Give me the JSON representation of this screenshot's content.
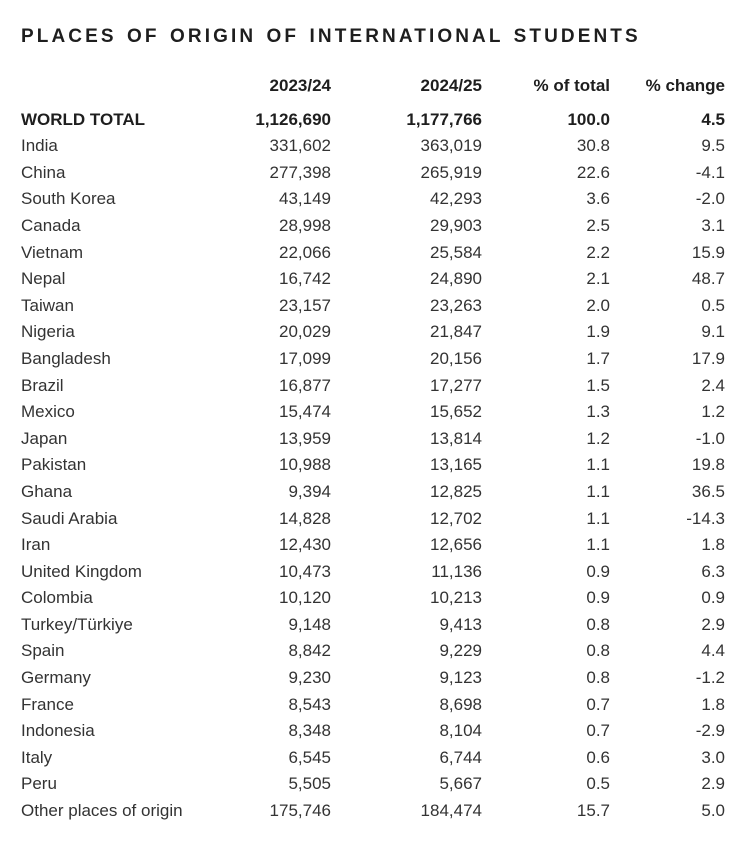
{
  "title": "PLACES OF ORIGIN OF INTERNATIONAL STUDENTS",
  "text_color": "#2e2e2e",
  "bold_text_color": "#1e1e1e",
  "background_color": "#ffffff",
  "table": {
    "columns": [
      "",
      "2023/24",
      "2024/25",
      "% of total",
      "% change"
    ],
    "rows": [
      {
        "label": "WORLD TOTAL",
        "values": [
          "1,126,690",
          "1,177,766",
          "100.0",
          "4.5"
        ],
        "bold": true
      },
      {
        "label": "India",
        "values": [
          "331,602",
          "363,019",
          "30.8",
          "9.5"
        ],
        "bold": false
      },
      {
        "label": "China",
        "values": [
          "277,398",
          "265,919",
          "22.6",
          "-4.1"
        ],
        "bold": false
      },
      {
        "label": "South Korea",
        "values": [
          "43,149",
          "42,293",
          "3.6",
          "-2.0"
        ],
        "bold": false
      },
      {
        "label": "Canada",
        "values": [
          "28,998",
          "29,903",
          "2.5",
          "3.1"
        ],
        "bold": false
      },
      {
        "label": "Vietnam",
        "values": [
          "22,066",
          "25,584",
          "2.2",
          "15.9"
        ],
        "bold": false
      },
      {
        "label": "Nepal",
        "values": [
          "16,742",
          "24,890",
          "2.1",
          "48.7"
        ],
        "bold": false
      },
      {
        "label": "Taiwan",
        "values": [
          "23,157",
          "23,263",
          "2.0",
          "0.5"
        ],
        "bold": false
      },
      {
        "label": "Nigeria",
        "values": [
          "20,029",
          "21,847",
          "1.9",
          "9.1"
        ],
        "bold": false
      },
      {
        "label": "Bangladesh",
        "values": [
          "17,099",
          "20,156",
          "1.7",
          "17.9"
        ],
        "bold": false
      },
      {
        "label": "Brazil",
        "values": [
          "16,877",
          "17,277",
          "1.5",
          "2.4"
        ],
        "bold": false
      },
      {
        "label": "Mexico",
        "values": [
          "15,474",
          "15,652",
          "1.3",
          "1.2"
        ],
        "bold": false
      },
      {
        "label": "Japan",
        "values": [
          "13,959",
          "13,814",
          "1.2",
          "-1.0"
        ],
        "bold": false
      },
      {
        "label": "Pakistan",
        "values": [
          "10,988",
          "13,165",
          "1.1",
          "19.8"
        ],
        "bold": false
      },
      {
        "label": "Ghana",
        "values": [
          "9,394",
          "12,825",
          "1.1",
          "36.5"
        ],
        "bold": false
      },
      {
        "label": "Saudi Arabia",
        "values": [
          "14,828",
          "12,702",
          "1.1",
          "-14.3"
        ],
        "bold": false
      },
      {
        "label": "Iran",
        "values": [
          "12,430",
          "12,656",
          "1.1",
          "1.8"
        ],
        "bold": false
      },
      {
        "label": "United Kingdom",
        "values": [
          "10,473",
          "11,136",
          "0.9",
          "6.3"
        ],
        "bold": false
      },
      {
        "label": "Colombia",
        "values": [
          "10,120",
          "10,213",
          "0.9",
          "0.9"
        ],
        "bold": false
      },
      {
        "label": "Turkey/Türkiye",
        "values": [
          "9,148",
          "9,413",
          "0.8",
          "2.9"
        ],
        "bold": false
      },
      {
        "label": "Spain",
        "values": [
          "8,842",
          "9,229",
          "0.8",
          "4.4"
        ],
        "bold": false
      },
      {
        "label": "Germany",
        "values": [
          "9,230",
          "9,123",
          "0.8",
          "-1.2"
        ],
        "bold": false
      },
      {
        "label": "France",
        "values": [
          "8,543",
          "8,698",
          "0.7",
          "1.8"
        ],
        "bold": false
      },
      {
        "label": "Indonesia",
        "values": [
          "8,348",
          "8,104",
          "0.7",
          "-2.9"
        ],
        "bold": false
      },
      {
        "label": "Italy",
        "values": [
          "6,545",
          "6,744",
          "0.6",
          "3.0"
        ],
        "bold": false
      },
      {
        "label": "Peru",
        "values": [
          "5,505",
          "5,667",
          "0.5",
          "2.9"
        ],
        "bold": false
      },
      {
        "label": "Other places of origin",
        "values": [
          "175,746",
          "184,474",
          "15.7",
          "5.0"
        ],
        "bold": false
      }
    ]
  }
}
